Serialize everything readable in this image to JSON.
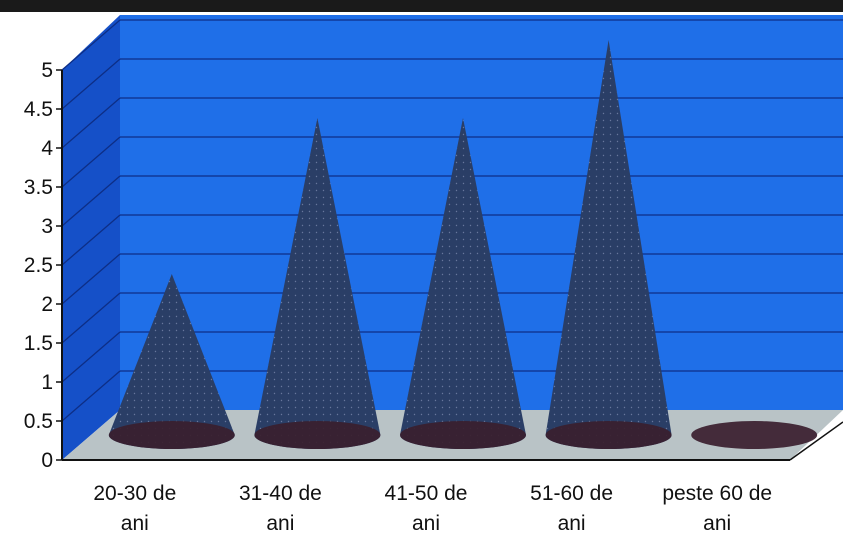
{
  "chart_data": {
    "type": "bar",
    "style": "3d-cone",
    "categories": [
      [
        "20-30 de",
        "ani"
      ],
      [
        "31-40 de",
        "ani"
      ],
      [
        "41-50 de",
        "ani"
      ],
      [
        "51-60 de",
        "ani"
      ],
      [
        "peste 60 de",
        "ani"
      ]
    ],
    "values": [
      2,
      4,
      4,
      5,
      0
    ],
    "ylim": [
      0,
      5
    ],
    "yticks": [
      "0",
      "0.5",
      "1",
      "1.5",
      "2",
      "2.5",
      "3",
      "3.5",
      "4",
      "4.5",
      "5"
    ],
    "grid": true,
    "legend": "none",
    "colors": {
      "wall": "#1F6FE8",
      "wall_side": "#1550C8",
      "floor": "#B9C3C6",
      "cone": "#2A3E66",
      "cone_base": "#3A1E2E",
      "grid": "#0D2E86"
    }
  }
}
